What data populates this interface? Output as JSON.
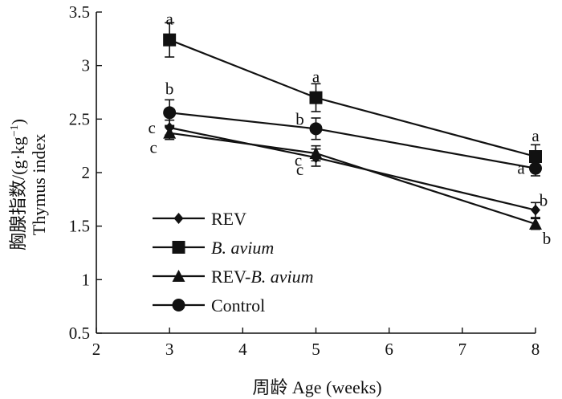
{
  "chart_data": {
    "type": "line",
    "xlabel": "周龄 Age (weeks)",
    "ylabel_cn": "胸腺指数/(g·kg",
    "ylabel_sup": "−1",
    "ylabel_close": ")",
    "ylabel_en": "Thymus index",
    "xlim": [
      2,
      8
    ],
    "ylim": [
      0.5,
      3.5
    ],
    "xticks": [
      2,
      3,
      4,
      5,
      6,
      7,
      8
    ],
    "yticks": [
      0.5,
      1,
      1.5,
      2,
      2.5,
      3,
      3.5
    ],
    "ytick_labels": [
      "0.5",
      "1",
      "1.5",
      "2",
      "2.5",
      "3",
      "3.5"
    ],
    "x": [
      3,
      5,
      8
    ],
    "legend_position": "bottom-left",
    "series": [
      {
        "name": "REV",
        "italic_part": "",
        "marker": "diamond",
        "values": [
          2.42,
          2.14,
          1.65
        ],
        "errors": [
          0.07,
          0.08,
          0.07
        ],
        "letters": [
          "c",
          "c",
          "b"
        ]
      },
      {
        "name": "",
        "italic_part": "B. avium",
        "marker": "square",
        "values": [
          3.24,
          2.7,
          2.15
        ],
        "errors": [
          0.16,
          0.13,
          0.11
        ],
        "letters": [
          "a",
          "a",
          "a"
        ]
      },
      {
        "name": "REV-",
        "italic_part": "B. avium",
        "marker": "triangle",
        "values": [
          2.37,
          2.18,
          1.52
        ],
        "errors": [
          0.06,
          0.07,
          0.05
        ],
        "letters": [
          "c",
          "c",
          "b"
        ]
      },
      {
        "name": "Control",
        "italic_part": "",
        "marker": "circle",
        "values": [
          2.56,
          2.41,
          2.04
        ],
        "errors": [
          0.12,
          0.1,
          0.07
        ],
        "letters": [
          "b",
          "b",
          "a"
        ]
      }
    ]
  }
}
